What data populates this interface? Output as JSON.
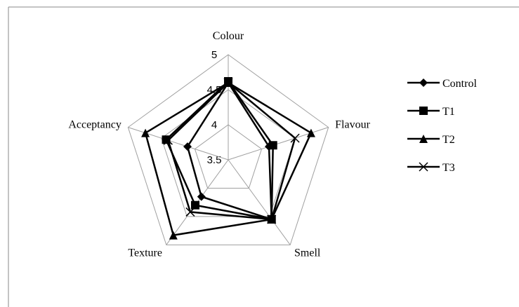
{
  "chart_data": {
    "type": "radar",
    "categories": [
      "Colour",
      "Flavour",
      "Smell",
      "Texture",
      "Acceptancy"
    ],
    "rlim": [
      3.5,
      5
    ],
    "rticks": [
      3.5,
      4,
      4.5,
      5
    ],
    "series": [
      {
        "name": "Control",
        "marker": "diamond",
        "color": "#000000",
        "values": [
          4.6,
          4.11,
          4.55,
          4.15,
          4.11
        ]
      },
      {
        "name": "T1",
        "marker": "square",
        "color": "#000000",
        "values": [
          4.62,
          4.17,
          4.55,
          4.3,
          4.43
        ]
      },
      {
        "name": "T2",
        "marker": "triangle",
        "color": "#000000",
        "values": [
          4.6,
          4.74,
          4.55,
          4.83,
          4.74
        ]
      },
      {
        "name": "T3",
        "marker": "x",
        "color": "#000000",
        "values": [
          4.6,
          4.5,
          4.55,
          4.42,
          4.4
        ]
      }
    ]
  }
}
